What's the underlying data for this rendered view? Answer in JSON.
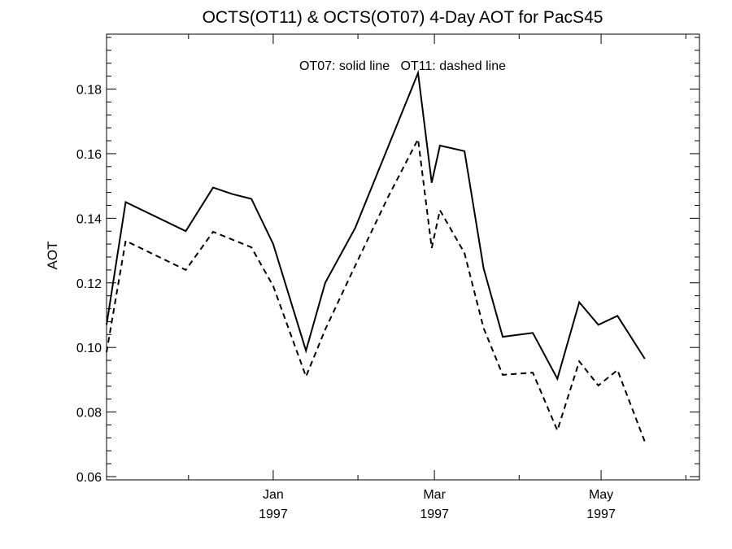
{
  "chart_data": {
    "type": "line",
    "title": "OCTS(OT11) & OCTS(OT07) 4-Day AOT for PacS45",
    "xlabel": "",
    "ylabel": "AOT",
    "annotation": "OT07: solid line   OT11: dashed line",
    "grid": false,
    "xlim": [
      "1996-11-01",
      "1997-06-06"
    ],
    "ylim": [
      0.059,
      0.197
    ],
    "yticks": [
      0.06,
      0.08,
      0.1,
      0.12,
      0.14,
      0.16,
      0.18
    ],
    "ytick_labels": [
      "0.06",
      "0.08",
      "0.10",
      "0.12",
      "0.14",
      "0.16",
      "0.18"
    ],
    "xticks": [
      {
        "date": "1997-01-01",
        "month": "Jan",
        "year": "1997"
      },
      {
        "date": "1997-03-01",
        "month": "Mar",
        "year": "1997"
      },
      {
        "date": "1997-05-01",
        "month": "May",
        "year": "1997"
      }
    ],
    "x_minor_ticks": [
      "1996-12-01",
      "1997-02-01",
      "1997-04-01",
      "1997-06-01"
    ],
    "series": [
      {
        "style": "solid",
        "points": [
          {
            "x": "1996-11-01",
            "y": 0.107
          },
          {
            "x": "1996-11-08",
            "y": 0.145
          },
          {
            "x": "1996-11-30",
            "y": 0.136
          },
          {
            "x": "1996-12-10",
            "y": 0.1495
          },
          {
            "x": "1996-12-17",
            "y": 0.1475
          },
          {
            "x": "1996-12-24",
            "y": 0.146
          },
          {
            "x": "1997-01-01",
            "y": 0.132
          },
          {
            "x": "1997-01-13",
            "y": 0.099
          },
          {
            "x": "1997-01-20",
            "y": 0.12
          },
          {
            "x": "1997-01-31",
            "y": 0.137
          },
          {
            "x": "1997-02-12",
            "y": 0.162
          },
          {
            "x": "1997-02-23",
            "y": 0.185
          },
          {
            "x": "1997-02-28",
            "y": 0.151
          },
          {
            "x": "1997-03-03",
            "y": 0.1625
          },
          {
            "x": "1997-03-12",
            "y": 0.1608
          },
          {
            "x": "1997-03-19",
            "y": 0.1245
          },
          {
            "x": "1997-03-26",
            "y": 0.1033
          },
          {
            "x": "1997-04-06",
            "y": 0.1045
          },
          {
            "x": "1997-04-15",
            "y": 0.0903
          },
          {
            "x": "1997-04-23",
            "y": 0.114
          },
          {
            "x": "1997-04-30",
            "y": 0.107
          },
          {
            "x": "1997-05-07",
            "y": 0.1098
          },
          {
            "x": "1997-05-17",
            "y": 0.0965
          }
        ]
      },
      {
        "style": "dashed",
        "points": [
          {
            "x": "1996-11-01",
            "y": 0.0985
          },
          {
            "x": "1996-11-08",
            "y": 0.133
          },
          {
            "x": "1996-11-30",
            "y": 0.124
          },
          {
            "x": "1996-12-10",
            "y": 0.1358
          },
          {
            "x": "1996-12-24",
            "y": 0.131
          },
          {
            "x": "1997-01-01",
            "y": 0.119
          },
          {
            "x": "1997-01-13",
            "y": 0.091
          },
          {
            "x": "1997-01-20",
            "y": 0.1055
          },
          {
            "x": "1997-01-31",
            "y": 0.1253
          },
          {
            "x": "1997-02-12",
            "y": 0.1465
          },
          {
            "x": "1997-02-23",
            "y": 0.1645
          },
          {
            "x": "1997-02-28",
            "y": 0.1308
          },
          {
            "x": "1997-03-03",
            "y": 0.1425
          },
          {
            "x": "1997-03-12",
            "y": 0.1292
          },
          {
            "x": "1997-03-19",
            "y": 0.106
          },
          {
            "x": "1997-03-26",
            "y": 0.0915
          },
          {
            "x": "1997-04-06",
            "y": 0.0922
          },
          {
            "x": "1997-04-15",
            "y": 0.0743
          },
          {
            "x": "1997-04-23",
            "y": 0.0957
          },
          {
            "x": "1997-04-30",
            "y": 0.0882
          },
          {
            "x": "1997-05-07",
            "y": 0.093
          },
          {
            "x": "1997-05-17",
            "y": 0.0708
          }
        ]
      }
    ]
  }
}
